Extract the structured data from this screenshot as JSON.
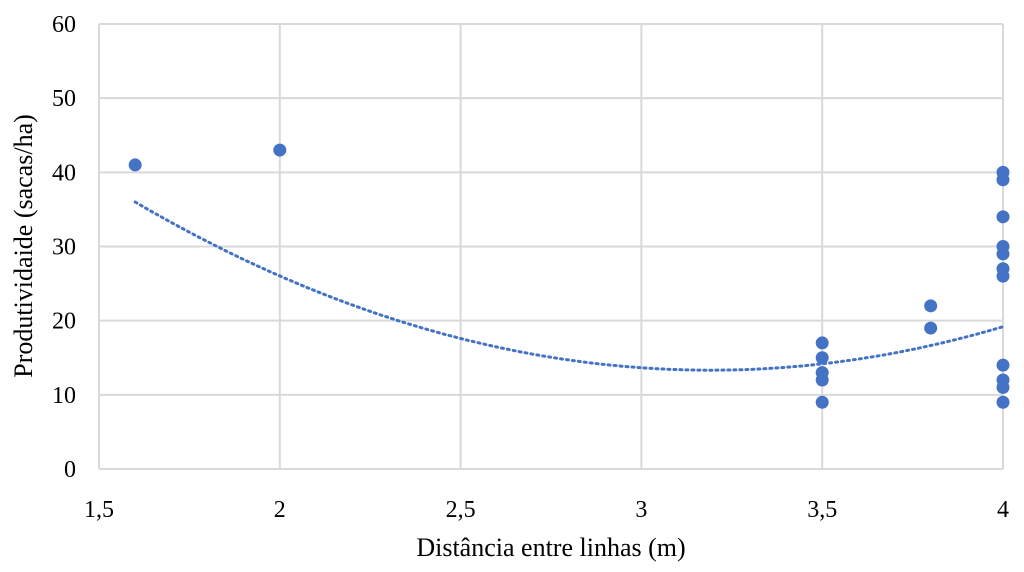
{
  "chart_data": {
    "type": "scatter",
    "title": "",
    "xlabel": "Distância entre linhas (m)",
    "ylabel": "Produtividaide (sacas/ha)",
    "xlim": [
      1.5,
      4
    ],
    "ylim": [
      0,
      60
    ],
    "x_ticks": [
      1.5,
      2,
      2.5,
      3,
      3.5,
      4
    ],
    "x_tick_labels": [
      "1,5",
      "2",
      "2,5",
      "3",
      "3,5",
      "4"
    ],
    "y_ticks": [
      0,
      10,
      20,
      30,
      40,
      50,
      60
    ],
    "y_tick_labels": [
      "0",
      "10",
      "20",
      "30",
      "40",
      "50",
      "60"
    ],
    "grid": true,
    "legend": "none",
    "point_color": "#4472c4",
    "trend_color": "#4472c4",
    "series": [
      {
        "points": [
          {
            "x": 1.6,
            "y": 41
          },
          {
            "x": 2.0,
            "y": 43
          },
          {
            "x": 3.5,
            "y": 17
          },
          {
            "x": 3.5,
            "y": 15
          },
          {
            "x": 3.5,
            "y": 13
          },
          {
            "x": 3.5,
            "y": 12
          },
          {
            "x": 3.5,
            "y": 9
          },
          {
            "x": 3.8,
            "y": 22
          },
          {
            "x": 3.8,
            "y": 19
          },
          {
            "x": 4.0,
            "y": 40
          },
          {
            "x": 4.0,
            "y": 39
          },
          {
            "x": 4.0,
            "y": 34
          },
          {
            "x": 4.0,
            "y": 30
          },
          {
            "x": 4.0,
            "y": 29
          },
          {
            "x": 4.0,
            "y": 27
          },
          {
            "x": 4.0,
            "y": 26
          },
          {
            "x": 4.0,
            "y": 14
          },
          {
            "x": 4.0,
            "y": 12
          },
          {
            "x": 4.0,
            "y": 11
          },
          {
            "x": 4.0,
            "y": 9
          }
        ]
      }
    ],
    "trendline": {
      "type": "polynomial",
      "style": "dotted",
      "x_range": [
        1.6,
        4.0
      ],
      "coefficients": [
        104.55,
        -57.18,
        8.96
      ]
    }
  }
}
